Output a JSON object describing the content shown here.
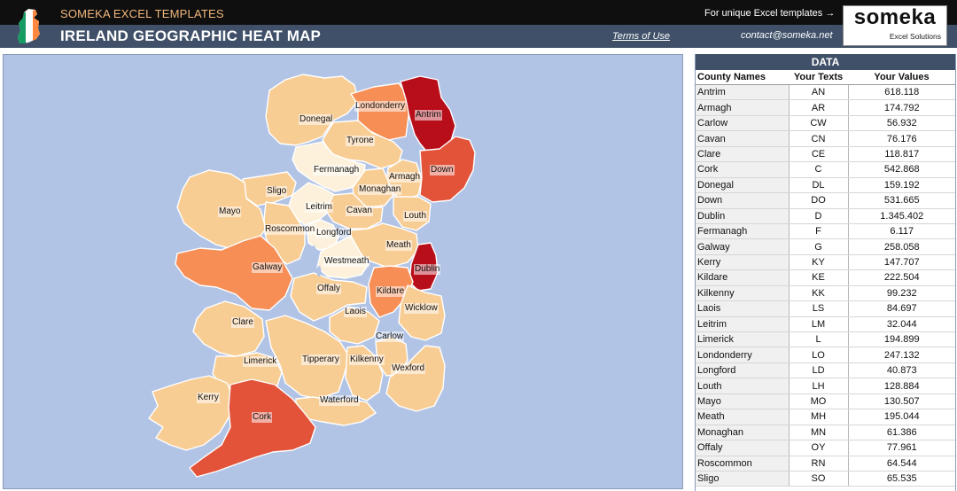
{
  "header": {
    "brand": "SOMEKA EXCEL TEMPLATES",
    "title": "IRELAND GEOGRAPHIC HEAT MAP",
    "promo": "For unique Excel templates →",
    "terms": "Terms of Use",
    "contact": "contact@someka.net",
    "logo_word": "someka",
    "logo_sub": "Excel Solutions"
  },
  "colors": {
    "heat_low": "#fdf1dc",
    "heat_light": "#f8cd94",
    "heat_mid": "#f68e56",
    "heat_high": "#e2533a",
    "heat_max": "#b80e1a",
    "sea": "#b2c4e5",
    "header_dark": "#3f5068",
    "brand_orange": "#f2b77c"
  },
  "table": {
    "title": "DATA",
    "headers": {
      "name": "County Names",
      "code": "Your Texts",
      "value": "Your Values"
    },
    "rows": [
      {
        "name": "Antrim",
        "code": "AN",
        "value": "618.118"
      },
      {
        "name": "Armagh",
        "code": "AR",
        "value": "174.792"
      },
      {
        "name": "Carlow",
        "code": "CW",
        "value": "56.932"
      },
      {
        "name": "Cavan",
        "code": "CN",
        "value": "76.176"
      },
      {
        "name": "Clare",
        "code": "CE",
        "value": "118.817"
      },
      {
        "name": "Cork",
        "code": "C",
        "value": "542.868"
      },
      {
        "name": "Donegal",
        "code": "DL",
        "value": "159.192"
      },
      {
        "name": "Down",
        "code": "DO",
        "value": "531.665"
      },
      {
        "name": "Dublin",
        "code": "D",
        "value": "1.345.402"
      },
      {
        "name": "Fermanagh",
        "code": "F",
        "value": "6.117"
      },
      {
        "name": "Galway",
        "code": "G",
        "value": "258.058"
      },
      {
        "name": "Kerry",
        "code": "KY",
        "value": "147.707"
      },
      {
        "name": "Kildare",
        "code": "KE",
        "value": "222.504"
      },
      {
        "name": "Kilkenny",
        "code": "KK",
        "value": "99.232"
      },
      {
        "name": "Laois",
        "code": "LS",
        "value": "84.697"
      },
      {
        "name": "Leitrim",
        "code": "LM",
        "value": "32.044"
      },
      {
        "name": "Limerick",
        "code": "L",
        "value": "194.899"
      },
      {
        "name": "Londonderry",
        "code": "LO",
        "value": "247.132"
      },
      {
        "name": "Longford",
        "code": "LD",
        "value": "40.873"
      },
      {
        "name": "Louth",
        "code": "LH",
        "value": "128.884"
      },
      {
        "name": "Mayo",
        "code": "MO",
        "value": "130.507"
      },
      {
        "name": "Meath",
        "code": "MH",
        "value": "195.044"
      },
      {
        "name": "Monaghan",
        "code": "MN",
        "value": "61.386"
      },
      {
        "name": "Offaly",
        "code": "OY",
        "value": "77.961"
      },
      {
        "name": "Roscommon",
        "code": "RN",
        "value": "64.544"
      },
      {
        "name": "Sligo",
        "code": "SO",
        "value": "65.535"
      }
    ]
  },
  "map": {
    "counties": [
      {
        "name": "Donegal",
        "heat": "heat_light"
      },
      {
        "name": "Londonderry",
        "heat": "heat_mid"
      },
      {
        "name": "Antrim",
        "heat": "heat_max"
      },
      {
        "name": "Tyrone",
        "heat": "heat_light"
      },
      {
        "name": "Fermanagh",
        "heat": "heat_low"
      },
      {
        "name": "Armagh",
        "heat": "heat_light"
      },
      {
        "name": "Down",
        "heat": "heat_high"
      },
      {
        "name": "Sligo",
        "heat": "heat_light"
      },
      {
        "name": "Monaghan",
        "heat": "heat_light"
      },
      {
        "name": "Mayo",
        "heat": "heat_light"
      },
      {
        "name": "Leitrim",
        "heat": "heat_low"
      },
      {
        "name": "Cavan",
        "heat": "heat_light"
      },
      {
        "name": "Louth",
        "heat": "heat_light"
      },
      {
        "name": "Roscommon",
        "heat": "heat_light"
      },
      {
        "name": "Longford",
        "heat": "heat_low"
      },
      {
        "name": "Meath",
        "heat": "heat_light"
      },
      {
        "name": "Westmeath",
        "heat": "heat_low"
      },
      {
        "name": "Dublin",
        "heat": "heat_max"
      },
      {
        "name": "Galway",
        "heat": "heat_mid"
      },
      {
        "name": "Kildare",
        "heat": "heat_mid"
      },
      {
        "name": "Offaly",
        "heat": "heat_light"
      },
      {
        "name": "Wicklow",
        "heat": "heat_light"
      },
      {
        "name": "Laois",
        "heat": "heat_light"
      },
      {
        "name": "Clare",
        "heat": "heat_light"
      },
      {
        "name": "Carlow",
        "heat": "heat_light"
      },
      {
        "name": "Limerick",
        "heat": "heat_light"
      },
      {
        "name": "Tipperary",
        "heat": "heat_light"
      },
      {
        "name": "Kilkenny",
        "heat": "heat_light"
      },
      {
        "name": "Wexford",
        "heat": "heat_light"
      },
      {
        "name": "Kerry",
        "heat": "heat_light"
      },
      {
        "name": "Waterford",
        "heat": "heat_light"
      },
      {
        "name": "Cork",
        "heat": "heat_high"
      }
    ]
  }
}
